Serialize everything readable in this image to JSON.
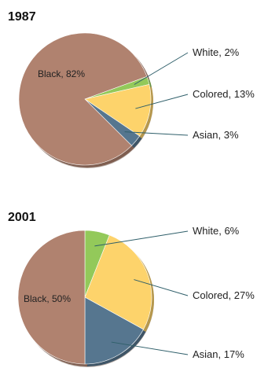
{
  "chart_data": [
    {
      "type": "pie",
      "title": "1987",
      "categories": [
        "Black",
        "White",
        "Colored",
        "Asian"
      ],
      "values": [
        82,
        2,
        13,
        3
      ],
      "labels": [
        "Black, 82%",
        "White, 2%",
        "Colored, 13%",
        "Asian, 3%"
      ],
      "colors": [
        "#b0826f",
        "#93c95a",
        "#fdd36b",
        "#56768f"
      ]
    },
    {
      "type": "pie",
      "title": "2001",
      "categories": [
        "Black",
        "White",
        "Colored",
        "Asian"
      ],
      "values": [
        50,
        6,
        27,
        17
      ],
      "labels": [
        "Black, 50%",
        "White, 6%",
        "Colored, 27%",
        "Asian, 17%"
      ],
      "colors": [
        "#b0826f",
        "#93c95a",
        "#fdd36b",
        "#56768f"
      ]
    }
  ]
}
